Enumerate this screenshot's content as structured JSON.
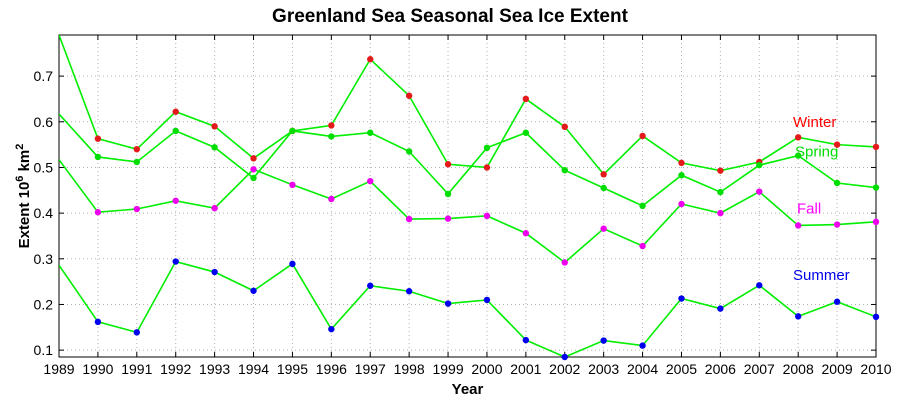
{
  "chart_data": {
    "type": "line",
    "title": "Greenland Sea Seasonal Sea Ice Extent",
    "xlabel": "Year",
    "ylabel_main": "Extent 10",
    "ylabel_exp1": "6",
    "ylabel_mid": " km",
    "ylabel_exp2": "2",
    "xlim": [
      1989,
      2010
    ],
    "ylim": [
      0.085,
      0.79
    ],
    "yticks": [
      0.1,
      0.2,
      0.3,
      0.4,
      0.5,
      0.6,
      0.7
    ],
    "ytick_labels": [
      "0.1",
      "0.2",
      "0.3",
      "0.4",
      "0.5",
      "0.6",
      "0.7"
    ],
    "x": [
      1989,
      1990,
      1991,
      1992,
      1993,
      1994,
      1995,
      1996,
      1997,
      1998,
      1999,
      2000,
      2001,
      2002,
      2003,
      2004,
      2005,
      2006,
      2007,
      2008,
      2009,
      2010
    ],
    "xtick_labels": [
      "1989",
      "1990",
      "1991",
      "1992",
      "1993",
      "1994",
      "1995",
      "1996",
      "1997",
      "1998",
      "1999",
      "2000",
      "2001",
      "2002",
      "2003",
      "2004",
      "2005",
      "2006",
      "2007",
      "2008",
      "2009",
      "2010"
    ],
    "line_color": "#00ee00",
    "grid": "dotted",
    "series": [
      {
        "name": "Winter",
        "color": "#ff0000",
        "marker_color": "#e41a1a",
        "legend_value": 0.6,
        "values": [
          0.79,
          0.563,
          0.54,
          0.622,
          0.59,
          0.52,
          0.58,
          0.592,
          0.737,
          0.657,
          0.507,
          0.5,
          0.65,
          0.589,
          0.485,
          0.569,
          0.51,
          0.493,
          0.512,
          0.566,
          0.55,
          0.545
        ]
      },
      {
        "name": "Spring",
        "color": "#00dd00",
        "marker_color": "#00dd00",
        "legend_value": 0.535,
        "values": [
          0.617,
          0.523,
          0.512,
          0.58,
          0.544,
          0.477,
          0.58,
          0.568,
          0.576,
          0.535,
          0.442,
          0.543,
          0.576,
          0.494,
          0.455,
          0.416,
          0.483,
          0.446,
          0.505,
          0.526,
          0.466,
          0.456
        ]
      },
      {
        "name": "Fall",
        "color": "#ff00ff",
        "marker_color": "#ee00ee",
        "legend_value": 0.41,
        "values": [
          0.517,
          0.402,
          0.409,
          0.427,
          0.411,
          0.496,
          0.462,
          0.431,
          0.47,
          0.387,
          0.388,
          0.394,
          0.356,
          0.292,
          0.366,
          0.328,
          0.42,
          0.4,
          0.447,
          0.373,
          0.375,
          0.381
        ]
      },
      {
        "name": "Summer",
        "color": "#0000ee",
        "marker_color": "#0000ee",
        "legend_value": 0.265,
        "values": [
          0.286,
          0.162,
          0.139,
          0.294,
          0.271,
          0.23,
          0.289,
          0.146,
          0.241,
          0.229,
          0.202,
          0.21,
          0.122,
          0.085,
          0.121,
          0.11,
          0.213,
          0.191,
          0.242,
          0.174,
          0.206,
          0.173
        ]
      }
    ]
  }
}
